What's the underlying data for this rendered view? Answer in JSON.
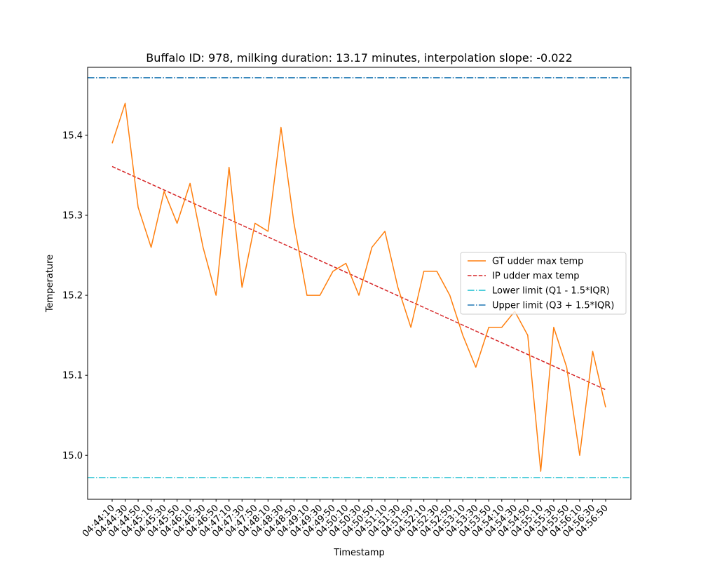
{
  "chart_data": {
    "type": "line",
    "title": "Buffalo ID: 978, milking duration: 13.17 minutes, interpolation slope: -0.022",
    "xlabel": "Timestamp",
    "ylabel": "Temperature",
    "ylim": [
      14.945,
      15.485
    ],
    "yticks": [
      15.0,
      15.1,
      15.2,
      15.3,
      15.4
    ],
    "legend_position": "center-right",
    "grid": false,
    "x": [
      "04:44:10",
      "04:44:30",
      "04:44:50",
      "04:45:10",
      "04:45:30",
      "04:45:50",
      "04:46:10",
      "04:46:30",
      "04:46:50",
      "04:47:10",
      "04:47:30",
      "04:47:50",
      "04:48:10",
      "04:48:30",
      "04:48:50",
      "04:49:10",
      "04:49:30",
      "04:49:50",
      "04:50:10",
      "04:50:30",
      "04:50:50",
      "04:51:10",
      "04:51:30",
      "04:51:50",
      "04:52:10",
      "04:52:30",
      "04:52:50",
      "04:53:10",
      "04:53:30",
      "04:53:50",
      "04:54:10",
      "04:54:30",
      "04:54:50",
      "04:55:10",
      "04:55:30",
      "04:55:50",
      "04:56:10",
      "04:56:30",
      "04:56:50"
    ],
    "series": [
      {
        "name": "GT udder max temp",
        "style": "solid",
        "color": "#ff7f0e",
        "values": [
          15.39,
          15.44,
          15.31,
          15.26,
          15.33,
          15.29,
          15.34,
          15.26,
          15.2,
          15.36,
          15.21,
          15.29,
          15.28,
          15.41,
          15.29,
          15.2,
          15.2,
          15.23,
          15.24,
          15.2,
          15.26,
          15.28,
          15.21,
          15.16,
          15.23,
          15.23,
          15.2,
          15.15,
          15.11,
          15.16,
          15.16,
          15.18,
          15.15,
          14.98,
          15.16,
          15.11,
          15.0,
          15.13,
          15.06
        ]
      },
      {
        "name": "IP udder max temp",
        "style": "dashed",
        "color": "#d62728",
        "line": {
          "start": 15.361,
          "end": 15.082
        }
      },
      {
        "name": "Lower limit (Q1 - 1.5*IQR)",
        "style": "dashdot",
        "color": "#17becf",
        "constant": 14.972
      },
      {
        "name": "Upper limit (Q3 + 1.5*IQR)",
        "style": "dashdot",
        "color": "#1f77b4",
        "constant": 15.472
      }
    ]
  }
}
